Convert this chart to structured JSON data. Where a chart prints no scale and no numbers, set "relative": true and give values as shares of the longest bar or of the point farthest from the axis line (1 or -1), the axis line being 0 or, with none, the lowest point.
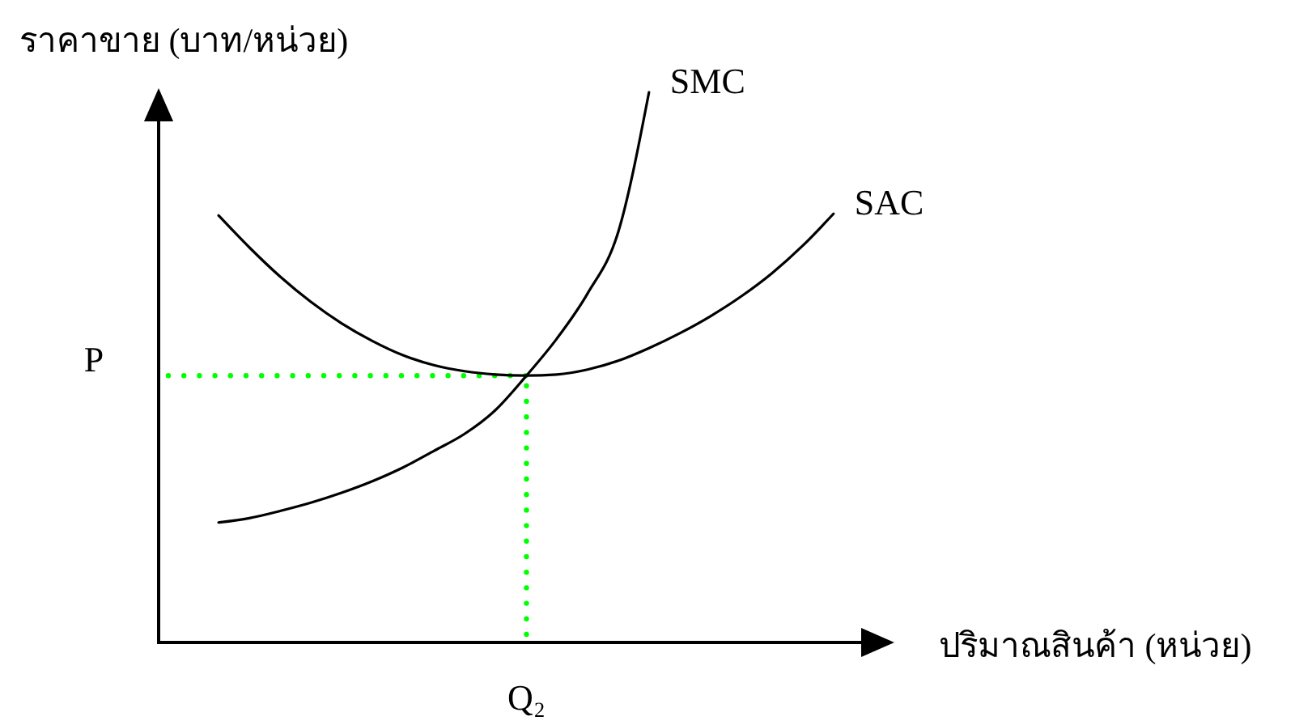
{
  "chart_data": {
    "type": "line",
    "relative": true,
    "xlabel": "ปริมาณสินค้า (หน่วย)",
    "ylabel": "ราคาขาย (บาท/หน่วย)",
    "categories": [
      null,
      null,
      null,
      null,
      null,
      null,
      null,
      null,
      null,
      null,
      null,
      null,
      null,
      null,
      null,
      null,
      null,
      null,
      null,
      null,
      null
    ],
    "series": [
      {
        "name": "SMC",
        "color": "#000000",
        "values": [
          0.218,
          0.226,
          0.239,
          0.254,
          0.272,
          0.293,
          0.318,
          0.348,
          0.379,
          0.422,
          0.484,
          0.552,
          0.634,
          0.746,
          1.0,
          null,
          null,
          null,
          null,
          null,
          null
        ]
      },
      {
        "name": "SAC",
        "color": "#000000",
        "values": [
          0.776,
          0.718,
          0.665,
          0.619,
          0.58,
          0.548,
          0.522,
          0.504,
          0.493,
          0.487,
          0.485,
          0.487,
          0.496,
          0.512,
          0.535,
          0.562,
          0.593,
          0.629,
          0.671,
          0.721,
          0.779
        ]
      }
    ],
    "ref_lines": [
      {
        "axis": "y",
        "value": 0.485,
        "label": "P",
        "color": "#00ff00",
        "line_style": "dotted"
      }
    ],
    "annotations": [
      "Q₂"
    ]
  }
}
